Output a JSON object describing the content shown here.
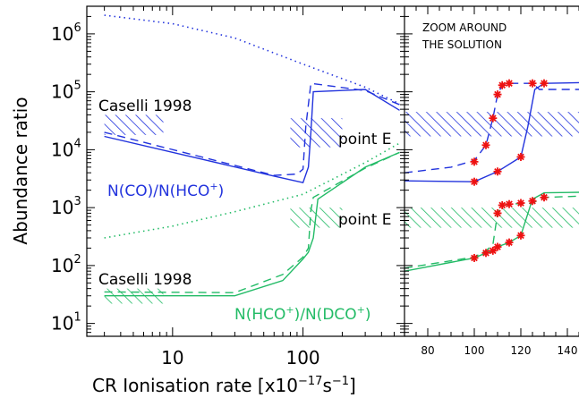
{
  "colors": {
    "blue": "#2233dd",
    "green": "#22bb66",
    "red": "#ee1111",
    "axis": "#000000"
  },
  "chart_data": [
    {
      "type": "line",
      "xlabel": "CR Ionisation rate [x10-17s-1]",
      "xlabel_parts": {
        "main": "CR Ionisation rate [x10",
        "exp": "−17",
        "unit": "s",
        "unit_exp": "−1",
        "close": "]"
      },
      "ylabel": "Abundance ratio",
      "x_scale": "log",
      "y_scale": "log",
      "xlim": [
        2.2,
        600
      ],
      "ylim": [
        6,
        3000000
      ],
      "x_ticks": [
        {
          "value": 10,
          "label": "10"
        },
        {
          "value": 100,
          "label": "100"
        }
      ],
      "y_ticks": [
        {
          "value": 10,
          "base": "10",
          "exp": "1"
        },
        {
          "value": 100,
          "base": "10",
          "exp": "2"
        },
        {
          "value": 1000,
          "base": "10",
          "exp": "3"
        },
        {
          "value": 10000,
          "base": "10",
          "exp": "4"
        },
        {
          "value": 100000,
          "base": "10",
          "exp": "5"
        },
        {
          "value": 1000000,
          "base": "10",
          "exp": "6"
        }
      ],
      "series": [
        {
          "id": "co-hco-solid",
          "color": "blue",
          "style": "solid",
          "x": [
            3,
            60,
            100,
            110,
            115,
            120,
            300,
            550
          ],
          "y": [
            17000,
            3500,
            2700,
            5000,
            20000,
            100000,
            110000,
            48000
          ]
        },
        {
          "id": "co-hco-dashed",
          "color": "blue",
          "style": "dashed",
          "x": [
            3,
            60,
            90,
            100,
            105,
            115,
            300,
            550
          ],
          "y": [
            20000,
            3600,
            3800,
            4600,
            25000,
            140000,
            105000,
            60000
          ]
        },
        {
          "id": "co-hco-dotted",
          "color": "blue",
          "style": "dotted",
          "x": [
            3,
            10,
            30,
            100,
            300,
            550
          ],
          "y": [
            2100000,
            1500000,
            850000,
            300000,
            120000,
            62000
          ]
        },
        {
          "id": "hco-dco-solid",
          "color": "green",
          "style": "solid",
          "x": [
            3,
            30,
            70,
            100,
            110,
            120,
            130,
            300,
            550
          ],
          "y": [
            30,
            30,
            55,
            130,
            170,
            300,
            1400,
            5000,
            9000
          ]
        },
        {
          "id": "hco-dco-dashed",
          "color": "green",
          "style": "dashed",
          "x": [
            3,
            30,
            70,
            100,
            110,
            115,
            120,
            300,
            550
          ],
          "y": [
            35,
            34,
            70,
            140,
            200,
            900,
            1500,
            4800,
            9000
          ]
        },
        {
          "id": "hco-dco-dotted",
          "color": "green",
          "style": "dotted",
          "x": [
            3,
            10,
            30,
            100,
            300,
            550
          ],
          "y": [
            300,
            480,
            850,
            1700,
            6000,
            13000
          ]
        }
      ],
      "bands": [
        {
          "id": "caselli-co",
          "color": "blue",
          "x": [
            3,
            8.5
          ],
          "y": [
            18000,
            40000
          ]
        },
        {
          "id": "pointE-co",
          "color": "blue",
          "x": [
            80,
            200
          ],
          "y": [
            11000,
            35000
          ]
        },
        {
          "id": "caselli-dco",
          "color": "green",
          "x": [
            3,
            8.5
          ],
          "y": [
            22000,
            40000
          ],
          "y_note": "in ratio units of the lower curve",
          "y_vals": [
            22,
            40
          ]
        },
        {
          "id": "pointE-dco",
          "color": "green",
          "x": [
            80,
            200
          ],
          "y": [
            450,
            1000
          ]
        }
      ],
      "annotations": [
        {
          "id": "caselli-top",
          "text": "Caselli 1998",
          "color": "black"
        },
        {
          "id": "pointE-top",
          "text": "point E",
          "color": "black"
        },
        {
          "id": "co-label",
          "text": "N(CO)/N(HCO+)",
          "parts": [
            "N(CO)/N(HCO",
            "+",
            ")"
          ],
          "color": "blue"
        },
        {
          "id": "pointE-bottom",
          "text": "point E",
          "color": "black"
        },
        {
          "id": "caselli-bottom",
          "text": "Caselli 1998",
          "color": "black"
        },
        {
          "id": "dco-label",
          "text": "N(HCO+)/N(DCO+)",
          "parts": [
            "N(HCO",
            "+",
            ")/N(DCO",
            "+",
            ")"
          ],
          "color": "green"
        }
      ]
    },
    {
      "type": "line",
      "title": "ZOOM AROUND THE SOLUTION",
      "title_lines": [
        "ZOOM AROUND",
        "THE SOLUTION"
      ],
      "x_scale": "linear",
      "y_scale": "log",
      "xlim": [
        70,
        150
      ],
      "ylim": [
        6,
        3000000
      ],
      "x_ticks": [
        {
          "value": 80,
          "label": "80"
        },
        {
          "value": 100,
          "label": "100"
        },
        {
          "value": 120,
          "label": "120"
        },
        {
          "value": 140,
          "label": "140"
        }
      ],
      "series": [
        {
          "id": "zoom-co-solid",
          "color": "blue",
          "style": "solid",
          "x": [
            70,
            100,
            110,
            120,
            123,
            126,
            130,
            150
          ],
          "y": [
            2900,
            2800,
            4200,
            7500,
            25000,
            110000,
            140000,
            145000
          ]
        },
        {
          "id": "zoom-co-dashed",
          "color": "blue",
          "style": "dashed",
          "x": [
            70,
            90,
            100,
            105,
            108,
            110,
            112,
            115,
            125,
            128,
            150
          ],
          "y": [
            4000,
            5000,
            6500,
            12000,
            35000,
            90000,
            130000,
            140000,
            140000,
            110000,
            110000
          ]
        },
        {
          "id": "zoom-dco-solid",
          "color": "green",
          "style": "solid",
          "x": [
            70,
            100,
            105,
            108,
            110,
            115,
            120,
            125,
            130,
            150
          ],
          "y": [
            80,
            135,
            165,
            180,
            210,
            250,
            330,
            1400,
            1800,
            1850
          ]
        },
        {
          "id": "zoom-dco-dashed",
          "color": "green",
          "style": "dashed",
          "x": [
            70,
            95,
            100,
            105,
            108,
            110,
            112,
            115,
            125,
            130,
            150
          ],
          "y": [
            90,
            130,
            140,
            180,
            230,
            800,
            1100,
            1150,
            1200,
            1500,
            1600
          ]
        }
      ],
      "markers": [
        {
          "color": "red",
          "symbol": "asterisk",
          "points": [
            [
              100,
              6200
            ],
            [
              105,
              12000
            ],
            [
              108,
              35000
            ],
            [
              110,
              90000
            ],
            [
              112,
              130000
            ],
            [
              115,
              140000
            ],
            [
              125,
              140000
            ],
            [
              130,
              140000
            ],
            [
              100,
              2800
            ],
            [
              110,
              4200
            ],
            [
              120,
              7500
            ],
            [
              100,
              135
            ],
            [
              105,
              165
            ],
            [
              108,
              180
            ],
            [
              110,
              210
            ],
            [
              115,
              250
            ],
            [
              120,
              330
            ],
            [
              110,
              800
            ],
            [
              112,
              1100
            ],
            [
              115,
              1150
            ],
            [
              120,
              1200
            ],
            [
              125,
              1300
            ],
            [
              130,
              1500
            ]
          ]
        }
      ],
      "bands": [
        {
          "id": "zoom-co-band",
          "color": "blue",
          "x": [
            70,
            150
          ],
          "y": [
            17000,
            45000
          ]
        },
        {
          "id": "zoom-dco-band",
          "color": "green",
          "x": [
            70,
            150
          ],
          "y": [
            450,
            1000
          ]
        }
      ]
    }
  ]
}
